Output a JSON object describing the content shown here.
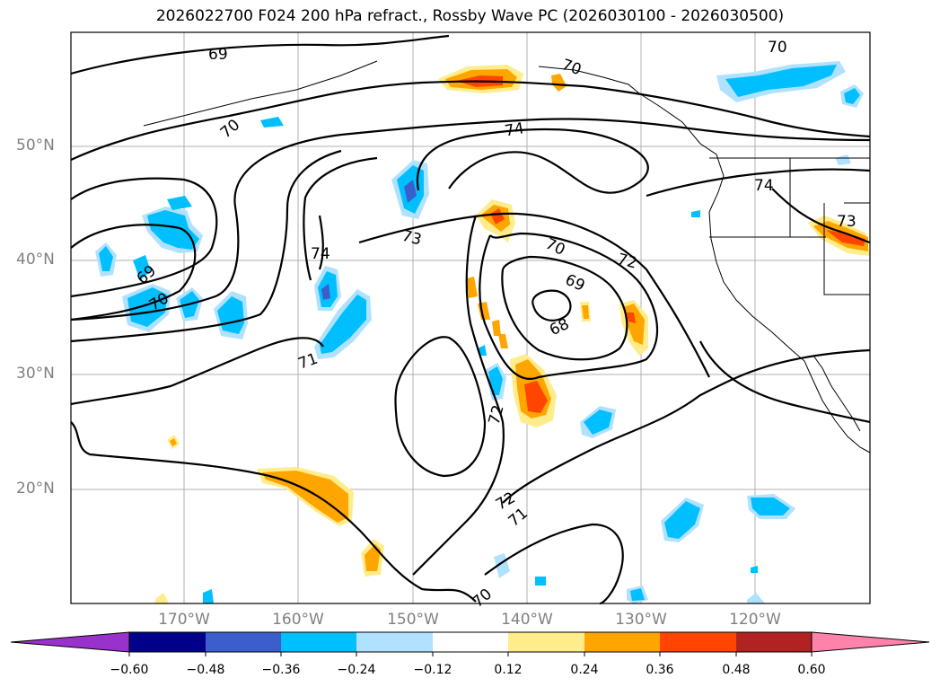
{
  "title": "2026022700 F024 200 hPa refract., Rossby Wave PC (2026030100 - 2026030500)",
  "map": {
    "lat_labels": [
      "50°N",
      "40°N",
      "30°N",
      "20°N"
    ],
    "lon_labels": [
      "170°W",
      "160°W",
      "150°W",
      "140°W",
      "130°W",
      "120°W"
    ],
    "gridline_color": "#b0b0b0",
    "contour_labels": [
      "69",
      "70",
      "70",
      "74",
      "70",
      "69",
      "70",
      "74",
      "73",
      "70",
      "72",
      "69",
      "68",
      "71",
      "72",
      "72",
      "71",
      "70",
      "74",
      "73"
    ]
  },
  "colorbar": {
    "tick_labels": [
      "−0.60",
      "−0.48",
      "−0.36",
      "−0.24",
      "−0.12",
      "0.12",
      "0.24",
      "0.36",
      "0.48",
      "0.60"
    ],
    "colors": [
      "#9932cc",
      "#00008b",
      "#3a5fcd",
      "#00bfff",
      "#b0e2ff",
      "#ffffff",
      "#ffec8b",
      "#ffa500",
      "#ff4500",
      "#b22222",
      "#ff82ab"
    ]
  }
}
